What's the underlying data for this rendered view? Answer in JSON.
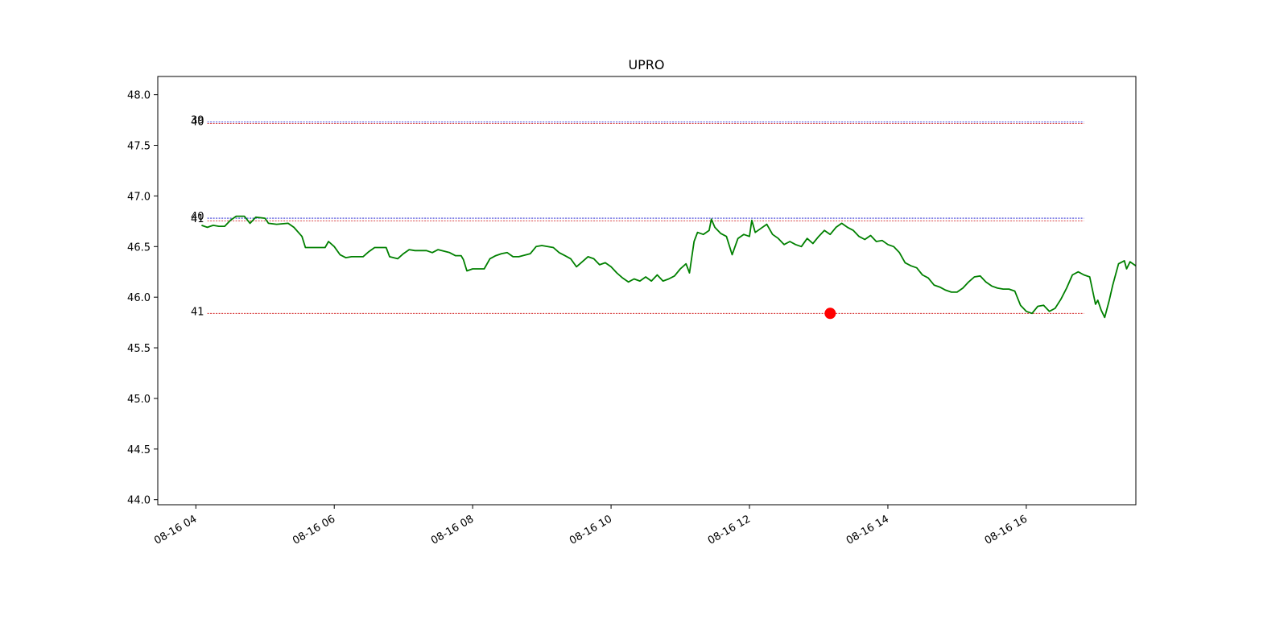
{
  "chart_data": {
    "type": "line",
    "title": "UPRO",
    "xlabel": "",
    "ylabel": "",
    "x_range": [
      "08-16 03:27",
      "08-16 17:35"
    ],
    "ylim": [
      43.95,
      48.18
    ],
    "yticks": [
      44.0,
      44.5,
      45.0,
      45.5,
      46.0,
      46.5,
      47.0,
      47.5,
      48.0
    ],
    "ytick_labels": [
      "44.0",
      "44.5",
      "45.0",
      "45.5",
      "46.0",
      "46.5",
      "47.0",
      "47.5",
      "48.0"
    ],
    "xticks": [
      "08-16 04:00",
      "08-16 06:00",
      "08-16 08:00",
      "08-16 10:00",
      "08-16 12:00",
      "08-16 14:00",
      "08-16 16:00"
    ],
    "xtick_labels": [
      "08-16 04",
      "08-16 06",
      "08-16 08",
      "08-16 10",
      "08-16 12",
      "08-16 14",
      "08-16 16"
    ],
    "grid": false,
    "colors": {
      "price": "#008000",
      "marker": "#ff0000",
      "level_blue": "#0000cc",
      "level_red": "#cc0000"
    },
    "levels": [
      {
        "label": "39",
        "value": 47.73,
        "color": "#0000cc"
      },
      {
        "label": "40",
        "value": 47.715,
        "color": "#cc0000"
      },
      {
        "label": "40",
        "value": 46.78,
        "color": "#0000cc"
      },
      {
        "label": "41",
        "value": 46.755,
        "color": "#cc0000"
      },
      {
        "label": "41",
        "value": 45.84,
        "color": "#cc0000"
      }
    ],
    "level_range": [
      "08-16 04:10",
      "08-16 16:50"
    ],
    "marker": {
      "x": "08-16 13:10",
      "y": 45.84
    },
    "series": [
      {
        "color": "#008000",
        "points": [
          [
            "08-16 04:05",
            46.71
          ],
          [
            "08-16 04:10",
            46.69
          ],
          [
            "08-16 04:15",
            46.71
          ],
          [
            "08-16 04:20",
            46.7
          ],
          [
            "08-16 04:25",
            46.7
          ],
          [
            "08-16 04:30",
            46.76
          ],
          [
            "08-16 04:35",
            46.8
          ],
          [
            "08-16 04:42",
            46.8
          ],
          [
            "08-16 04:47",
            46.73
          ],
          [
            "08-16 04:52",
            46.79
          ],
          [
            "08-16 05:00",
            46.78
          ],
          [
            "08-16 05:03",
            46.73
          ],
          [
            "08-16 05:10",
            46.72
          ],
          [
            "08-16 05:20",
            46.73
          ],
          [
            "08-16 05:25",
            46.69
          ],
          [
            "08-16 05:32",
            46.6
          ],
          [
            "08-16 05:35",
            46.49
          ],
          [
            "08-16 05:45",
            46.49
          ],
          [
            "08-16 05:52",
            46.49
          ],
          [
            "08-16 05:55",
            46.55
          ],
          [
            "08-16 06:00",
            46.5
          ],
          [
            "08-16 06:05",
            46.42
          ],
          [
            "08-16 06:10",
            46.39
          ],
          [
            "08-16 06:15",
            46.4
          ],
          [
            "08-16 06:25",
            46.4
          ],
          [
            "08-16 06:30",
            46.45
          ],
          [
            "08-16 06:35",
            46.49
          ],
          [
            "08-16 06:45",
            46.49
          ],
          [
            "08-16 06:48",
            46.4
          ],
          [
            "08-16 06:55",
            46.38
          ],
          [
            "08-16 07:00",
            46.43
          ],
          [
            "08-16 07:05",
            46.47
          ],
          [
            "08-16 07:10",
            46.46
          ],
          [
            "08-16 07:20",
            46.46
          ],
          [
            "08-16 07:25",
            46.44
          ],
          [
            "08-16 07:30",
            46.47
          ],
          [
            "08-16 07:40",
            46.44
          ],
          [
            "08-16 07:45",
            46.41
          ],
          [
            "08-16 07:50",
            46.41
          ],
          [
            "08-16 07:52",
            46.37
          ],
          [
            "08-16 07:55",
            46.26
          ],
          [
            "08-16 08:00",
            46.28
          ],
          [
            "08-16 08:10",
            46.28
          ],
          [
            "08-16 08:15",
            46.38
          ],
          [
            "08-16 08:20",
            46.41
          ],
          [
            "08-16 08:25",
            46.43
          ],
          [
            "08-16 08:30",
            46.44
          ],
          [
            "08-16 08:35",
            46.4
          ],
          [
            "08-16 08:40",
            46.4
          ],
          [
            "08-16 08:50",
            46.43
          ],
          [
            "08-16 08:55",
            46.5
          ],
          [
            "08-16 09:00",
            46.51
          ],
          [
            "08-16 09:10",
            46.49
          ],
          [
            "08-16 09:15",
            46.44
          ],
          [
            "08-16 09:20",
            46.41
          ],
          [
            "08-16 09:25",
            46.38
          ],
          [
            "08-16 09:30",
            46.3
          ],
          [
            "08-16 09:35",
            46.35
          ],
          [
            "08-16 09:40",
            46.4
          ],
          [
            "08-16 09:45",
            46.38
          ],
          [
            "08-16 09:50",
            46.32
          ],
          [
            "08-16 09:55",
            46.34
          ],
          [
            "08-16 10:00",
            46.3
          ],
          [
            "08-16 10:05",
            46.24
          ],
          [
            "08-16 10:10",
            46.19
          ],
          [
            "08-16 10:15",
            46.15
          ],
          [
            "08-16 10:20",
            46.18
          ],
          [
            "08-16 10:25",
            46.16
          ],
          [
            "08-16 10:30",
            46.2
          ],
          [
            "08-16 10:35",
            46.16
          ],
          [
            "08-16 10:40",
            46.22
          ],
          [
            "08-16 10:45",
            46.16
          ],
          [
            "08-16 10:50",
            46.18
          ],
          [
            "08-16 10:55",
            46.21
          ],
          [
            "08-16 11:00",
            46.28
          ],
          [
            "08-16 11:05",
            46.33
          ],
          [
            "08-16 11:08",
            46.24
          ],
          [
            "08-16 11:12",
            46.55
          ],
          [
            "08-16 11:15",
            46.64
          ],
          [
            "08-16 11:20",
            46.62
          ],
          [
            "08-16 11:25",
            46.66
          ],
          [
            "08-16 11:27",
            46.77
          ],
          [
            "08-16 11:30",
            46.69
          ],
          [
            "08-16 11:35",
            46.63
          ],
          [
            "08-16 11:40",
            46.6
          ],
          [
            "08-16 11:45",
            46.42
          ],
          [
            "08-16 11:50",
            46.58
          ],
          [
            "08-16 11:55",
            46.62
          ],
          [
            "08-16 12:00",
            46.6
          ],
          [
            "08-16 12:02",
            46.76
          ],
          [
            "08-16 12:05",
            46.64
          ],
          [
            "08-16 12:10",
            46.68
          ],
          [
            "08-16 12:15",
            46.72
          ],
          [
            "08-16 12:20",
            46.62
          ],
          [
            "08-16 12:25",
            46.58
          ],
          [
            "08-16 12:30",
            46.52
          ],
          [
            "08-16 12:35",
            46.55
          ],
          [
            "08-16 12:40",
            46.52
          ],
          [
            "08-16 12:45",
            46.5
          ],
          [
            "08-16 12:50",
            46.58
          ],
          [
            "08-16 12:55",
            46.53
          ],
          [
            "08-16 13:00",
            46.6
          ],
          [
            "08-16 13:05",
            46.66
          ],
          [
            "08-16 13:10",
            46.62
          ],
          [
            "08-16 13:15",
            46.69
          ],
          [
            "08-16 13:20",
            46.73
          ],
          [
            "08-16 13:25",
            46.69
          ],
          [
            "08-16 13:30",
            46.66
          ],
          [
            "08-16 13:35",
            46.6
          ],
          [
            "08-16 13:40",
            46.57
          ],
          [
            "08-16 13:45",
            46.61
          ],
          [
            "08-16 13:50",
            46.55
          ],
          [
            "08-16 13:55",
            46.56
          ],
          [
            "08-16 14:00",
            46.52
          ],
          [
            "08-16 14:05",
            46.5
          ],
          [
            "08-16 14:10",
            46.44
          ],
          [
            "08-16 14:15",
            46.34
          ],
          [
            "08-16 14:20",
            46.31
          ],
          [
            "08-16 14:25",
            46.29
          ],
          [
            "08-16 14:30",
            46.22
          ],
          [
            "08-16 14:35",
            46.19
          ],
          [
            "08-16 14:40",
            46.12
          ],
          [
            "08-16 14:45",
            46.1
          ],
          [
            "08-16 14:50",
            46.07
          ],
          [
            "08-16 14:55",
            46.05
          ],
          [
            "08-16 15:00",
            46.05
          ],
          [
            "08-16 15:05",
            46.09
          ],
          [
            "08-16 15:10",
            46.15
          ],
          [
            "08-16 15:15",
            46.2
          ],
          [
            "08-16 15:20",
            46.21
          ],
          [
            "08-16 15:25",
            46.15
          ],
          [
            "08-16 15:30",
            46.11
          ],
          [
            "08-16 15:35",
            46.09
          ],
          [
            "08-16 15:40",
            46.08
          ],
          [
            "08-16 15:45",
            46.08
          ],
          [
            "08-16 15:50",
            46.06
          ],
          [
            "08-16 15:55",
            45.92
          ],
          [
            "08-16 16:00",
            45.86
          ],
          [
            "08-16 16:05",
            45.84
          ],
          [
            "08-16 16:10",
            45.91
          ],
          [
            "08-16 16:15",
            45.92
          ],
          [
            "08-16 16:20",
            45.86
          ],
          [
            "08-16 16:25",
            45.89
          ],
          [
            "08-16 16:30",
            45.98
          ],
          [
            "08-16 16:35",
            46.09
          ],
          [
            "08-16 16:40",
            46.22
          ],
          [
            "08-16 16:45",
            46.25
          ],
          [
            "08-16 16:50",
            46.22
          ],
          [
            "08-16 16:55",
            46.2
          ],
          [
            "08-16 17:00",
            45.93
          ],
          [
            "08-16 17:02",
            45.97
          ],
          [
            "08-16 17:05",
            45.87
          ],
          [
            "08-16 17:08",
            45.8
          ],
          [
            "08-16 17:12",
            45.97
          ],
          [
            "08-16 17:15",
            46.12
          ],
          [
            "08-16 17:20",
            46.33
          ],
          [
            "08-16 17:25",
            46.36
          ],
          [
            "08-16 17:27",
            46.28
          ],
          [
            "08-16 17:30",
            46.35
          ],
          [
            "08-16 17:35",
            46.31
          ]
        ]
      }
    ]
  }
}
